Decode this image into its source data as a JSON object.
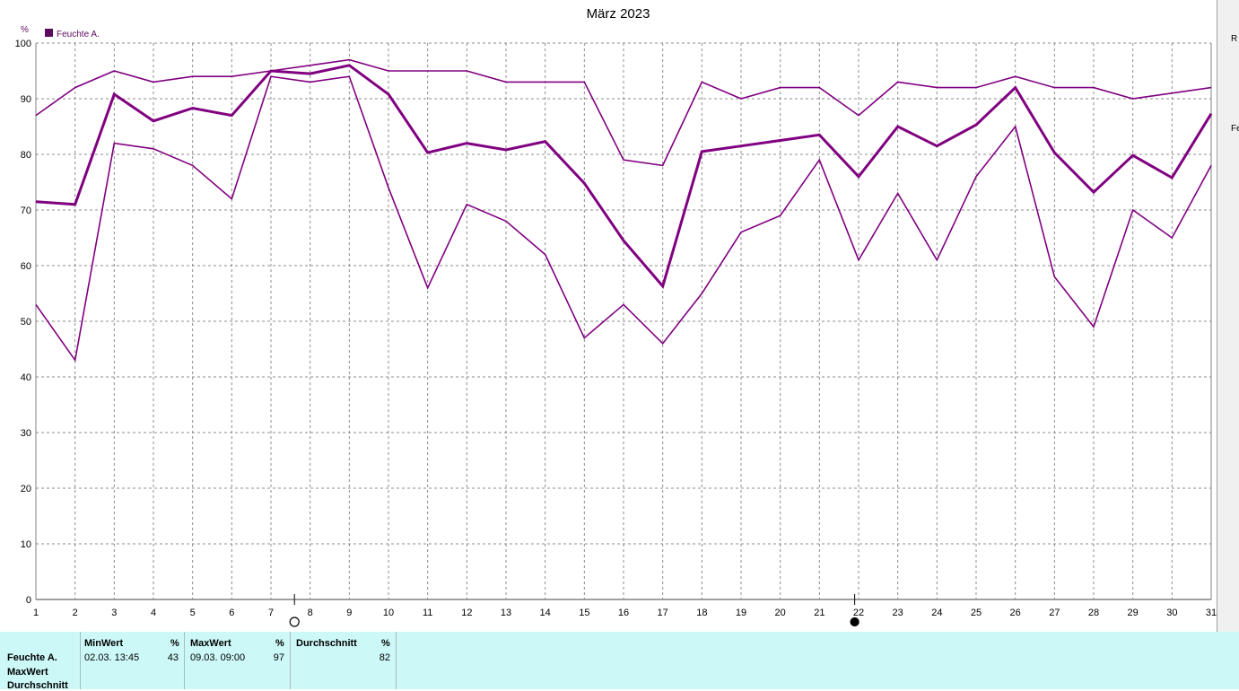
{
  "chart_data": {
    "type": "line",
    "title": "März 2023",
    "ylabel": "%",
    "legend": {
      "label": "Feuchte A.",
      "placement": "top-left",
      "color": "#5c0a5c"
    },
    "ylim": [
      0,
      100
    ],
    "yticks": [
      0,
      10,
      20,
      30,
      40,
      50,
      60,
      70,
      80,
      90,
      100
    ],
    "x": [
      1,
      2,
      3,
      4,
      5,
      6,
      7,
      8,
      9,
      10,
      11,
      12,
      13,
      14,
      15,
      16,
      17,
      18,
      19,
      20,
      21,
      22,
      23,
      24,
      25,
      26,
      27,
      28,
      29,
      30,
      31
    ],
    "series": [
      {
        "role": "max",
        "values": [
          87,
          92,
          95,
          93,
          94,
          94,
          95,
          96,
          97,
          95,
          95,
          95,
          93,
          93,
          93,
          79,
          78,
          93,
          90,
          92,
          92,
          87,
          93,
          92,
          92,
          94,
          92,
          92,
          90,
          91,
          92
        ]
      },
      {
        "role": "avg",
        "values": [
          71.5,
          71,
          90.8,
          86,
          88.3,
          87,
          95,
          94.5,
          96,
          90.8,
          80.3,
          82,
          80.8,
          82.3,
          74.8,
          64.5,
          56.3,
          80.5,
          81.5,
          82.5,
          83.5,
          76,
          85,
          81.5,
          85.3,
          92,
          80.3,
          73.2,
          79.8,
          75.8,
          87.3
        ]
      },
      {
        "role": "min",
        "values": [
          53,
          43,
          82,
          81,
          78,
          72,
          94,
          93,
          94,
          74,
          56,
          71,
          68,
          62,
          47,
          53,
          46,
          55,
          66,
          69,
          79,
          61,
          73,
          61,
          76,
          85,
          58,
          49,
          70,
          65,
          78
        ]
      }
    ],
    "moon_phases": [
      {
        "day": 7.6,
        "phase": "full"
      },
      {
        "day": 21.9,
        "phase": "new"
      }
    ],
    "grid": true,
    "line_color": "#800080"
  },
  "right_edge": {
    "text_a": "R",
    "text_b": "Fe"
  },
  "stats": {
    "series_label": "Feuchte A.",
    "row_labels": [
      "MaxWert",
      "Durchschnitt"
    ],
    "min": {
      "header": "MinWert",
      "unit": "%",
      "datetime": "02.03.  13:45",
      "value": "43"
    },
    "max": {
      "header": "MaxWert",
      "unit": "%",
      "datetime": "09.03.  09:00",
      "value": "97"
    },
    "avg": {
      "header": "Durchschnitt",
      "unit": "%",
      "value": "82"
    }
  }
}
